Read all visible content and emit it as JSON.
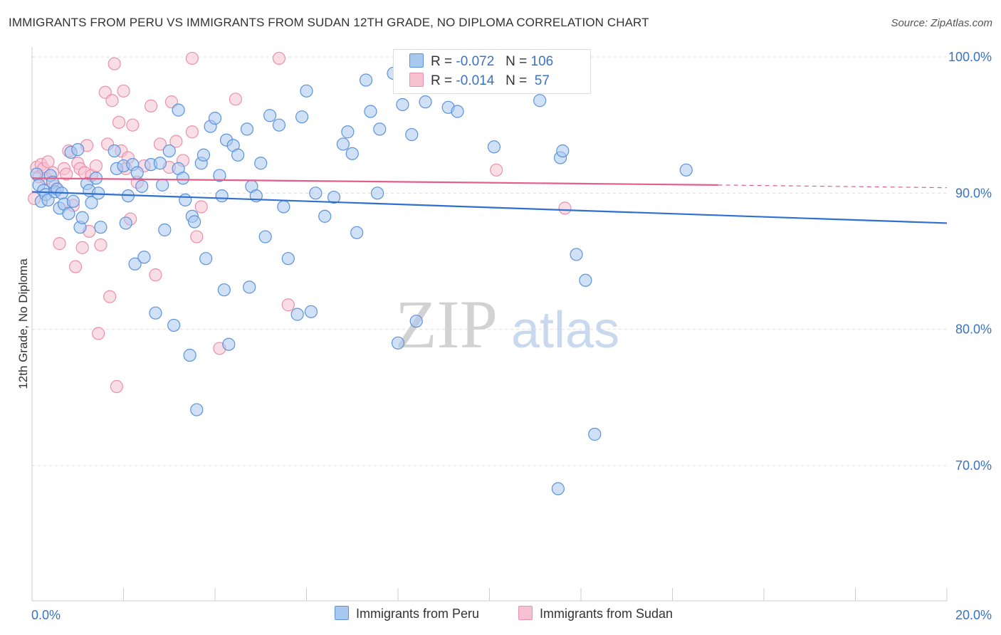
{
  "title": "IMMIGRANTS FROM PERU VS IMMIGRANTS FROM SUDAN 12TH GRADE, NO DIPLOMA CORRELATION CHART",
  "source": "Source: ZipAtlas.com",
  "watermark": {
    "zip": "ZIP",
    "atlas": "atlas"
  },
  "colors": {
    "peru": "#5b93db",
    "peru_fill": "#a9c8f0",
    "peru_line": "#2f6fd0",
    "sudan": "#ec8fac",
    "sudan_fill": "#f6c2d2",
    "sudan_line": "#e35f8a",
    "axis_label": "#3a72c4",
    "grid": "#dddddd"
  },
  "legend": {
    "peru": {
      "r_label": "R =",
      "r_value": "-0.072",
      "n_label": "N =",
      "n_value": "106"
    },
    "sudan": {
      "r_label": "R =",
      "r_value": "-0.014",
      "n_label": "N =",
      "n_value": "57"
    }
  },
  "chart_data": {
    "type": "scatter",
    "title": "IMMIGRANTS FROM PERU VS IMMIGRANTS FROM SUDAN 12TH GRADE, NO DIPLOMA CORRELATION CHART",
    "xlabel": "",
    "ylabel": "12th Grade, No Diploma",
    "xlim": [
      0,
      20
    ],
    "ylim": [
      60,
      101
    ],
    "x_tick_labels": [
      "0.0%",
      "20.0%"
    ],
    "y_ticks": [
      70,
      80,
      90,
      100
    ],
    "y_tick_labels": [
      "70.0%",
      "80.0%",
      "90.0%",
      "100.0%"
    ],
    "series": [
      {
        "name": "Immigrants from Peru",
        "r": -0.072,
        "n": 106,
        "trend": {
          "x0": 0,
          "y0": 90.1,
          "x1": 20,
          "y1": 87.8
        },
        "points": [
          [
            0.1,
            91.4
          ],
          [
            0.15,
            90.6
          ],
          [
            0.2,
            89.4
          ],
          [
            0.25,
            90.2
          ],
          [
            0.3,
            89.9
          ],
          [
            0.35,
            89.5
          ],
          [
            0.4,
            91.3
          ],
          [
            0.45,
            90.8
          ],
          [
            0.5,
            90.1
          ],
          [
            0.55,
            90.3
          ],
          [
            0.6,
            88.9
          ],
          [
            0.65,
            90.0
          ],
          [
            0.7,
            89.2
          ],
          [
            0.8,
            88.5
          ],
          [
            0.85,
            93.0
          ],
          [
            0.9,
            89.4
          ],
          [
            1.0,
            93.2
          ],
          [
            1.05,
            87.5
          ],
          [
            1.1,
            88.2
          ],
          [
            1.2,
            90.7
          ],
          [
            1.25,
            90.2
          ],
          [
            1.3,
            89.3
          ],
          [
            1.4,
            91.1
          ],
          [
            1.45,
            90.0
          ],
          [
            1.5,
            87.5
          ],
          [
            1.8,
            93.1
          ],
          [
            1.85,
            91.8
          ],
          [
            2.0,
            92.0
          ],
          [
            2.1,
            89.8
          ],
          [
            2.05,
            87.8
          ],
          [
            2.2,
            92.1
          ],
          [
            2.3,
            91.5
          ],
          [
            2.25,
            84.8
          ],
          [
            2.4,
            90.5
          ],
          [
            2.45,
            85.3
          ],
          [
            2.6,
            92.1
          ],
          [
            2.7,
            81.2
          ],
          [
            2.8,
            92.2
          ],
          [
            2.85,
            90.6
          ],
          [
            2.9,
            87.3
          ],
          [
            3.0,
            93.1
          ],
          [
            3.1,
            80.3
          ],
          [
            3.2,
            91.8
          ],
          [
            3.3,
            91.1
          ],
          [
            3.35,
            89.5
          ],
          [
            3.45,
            78.1
          ],
          [
            3.5,
            88.3
          ],
          [
            3.55,
            87.9
          ],
          [
            3.6,
            74.1
          ],
          [
            3.7,
            92.2
          ],
          [
            3.75,
            92.8
          ],
          [
            3.8,
            85.2
          ],
          [
            3.9,
            94.9
          ],
          [
            4.0,
            95.5
          ],
          [
            4.1,
            91.3
          ],
          [
            4.15,
            89.8
          ],
          [
            4.2,
            82.9
          ],
          [
            4.25,
            93.9
          ],
          [
            4.3,
            78.9
          ],
          [
            4.4,
            93.5
          ],
          [
            4.5,
            92.8
          ],
          [
            4.7,
            94.7
          ],
          [
            4.75,
            83.1
          ],
          [
            4.8,
            90.5
          ],
          [
            4.9,
            89.8
          ],
          [
            5.1,
            86.8
          ],
          [
            5.2,
            95.7
          ],
          [
            5.4,
            95.0
          ],
          [
            5.5,
            89.0
          ],
          [
            5.6,
            85.2
          ],
          [
            5.8,
            81.1
          ],
          [
            5.9,
            95.6
          ],
          [
            6.1,
            81.3
          ],
          [
            6.2,
            90.0
          ],
          [
            6.4,
            88.3
          ],
          [
            6.6,
            89.7
          ],
          [
            6.8,
            93.6
          ],
          [
            6.9,
            94.5
          ],
          [
            7.0,
            92.9
          ],
          [
            7.1,
            87.1
          ],
          [
            7.3,
            98.3
          ],
          [
            7.4,
            96.0
          ],
          [
            7.55,
            90.0
          ],
          [
            7.6,
            94.7
          ],
          [
            7.9,
            98.8
          ],
          [
            8.0,
            79.0
          ],
          [
            8.1,
            96.5
          ],
          [
            8.2,
            98.5
          ],
          [
            8.3,
            94.3
          ],
          [
            8.4,
            80.6
          ],
          [
            8.6,
            96.7
          ],
          [
            9.1,
            96.3
          ],
          [
            9.4,
            99.9
          ],
          [
            10.1,
            93.4
          ],
          [
            11.1,
            96.8
          ],
          [
            11.5,
            68.3
          ],
          [
            11.55,
            92.6
          ],
          [
            11.6,
            93.1
          ],
          [
            11.9,
            85.5
          ],
          [
            12.1,
            83.6
          ],
          [
            12.3,
            72.3
          ],
          [
            14.3,
            91.7
          ],
          [
            9.3,
            96.0
          ],
          [
            5.0,
            92.2
          ],
          [
            3.2,
            96.1
          ],
          [
            6.0,
            97.5
          ]
        ]
      },
      {
        "name": "Immigrants from Sudan",
        "r": -0.014,
        "n": 57,
        "trend": {
          "x0": 0,
          "y0": 91.1,
          "x1": 15,
          "y1": 90.6,
          "dash_to_x": 20,
          "dash_to_y": 90.4
        },
        "points": [
          [
            0.05,
            89.6
          ],
          [
            0.1,
            91.9
          ],
          [
            0.15,
            91.2
          ],
          [
            0.2,
            92.1
          ],
          [
            0.25,
            91.8
          ],
          [
            0.3,
            91.1
          ],
          [
            0.35,
            92.3
          ],
          [
            0.45,
            91.5
          ],
          [
            0.5,
            90.5
          ],
          [
            0.6,
            86.3
          ],
          [
            0.7,
            91.8
          ],
          [
            0.75,
            91.4
          ],
          [
            0.8,
            93.1
          ],
          [
            0.9,
            89.1
          ],
          [
            0.95,
            84.6
          ],
          [
            1.0,
            92.2
          ],
          [
            1.05,
            91.8
          ],
          [
            1.1,
            86.0
          ],
          [
            1.15,
            91.5
          ],
          [
            1.2,
            93.5
          ],
          [
            1.25,
            87.2
          ],
          [
            1.3,
            91.3
          ],
          [
            1.4,
            92.0
          ],
          [
            1.45,
            79.7
          ],
          [
            1.5,
            86.2
          ],
          [
            1.6,
            97.4
          ],
          [
            1.65,
            93.6
          ],
          [
            1.7,
            82.4
          ],
          [
            1.75,
            96.8
          ],
          [
            1.8,
            99.5
          ],
          [
            1.85,
            75.8
          ],
          [
            1.9,
            95.2
          ],
          [
            1.95,
            93.1
          ],
          [
            2.0,
            97.5
          ],
          [
            2.05,
            91.8
          ],
          [
            2.1,
            92.6
          ],
          [
            2.15,
            88.1
          ],
          [
            2.2,
            95.0
          ],
          [
            2.3,
            90.8
          ],
          [
            2.45,
            92.0
          ],
          [
            2.6,
            96.4
          ],
          [
            2.7,
            84.0
          ],
          [
            2.8,
            93.6
          ],
          [
            3.0,
            91.9
          ],
          [
            3.05,
            96.7
          ],
          [
            3.15,
            93.8
          ],
          [
            3.3,
            92.4
          ],
          [
            3.5,
            94.5
          ],
          [
            3.6,
            86.8
          ],
          [
            3.7,
            89.0
          ],
          [
            4.1,
            78.6
          ],
          [
            4.45,
            96.9
          ],
          [
            5.6,
            81.8
          ],
          [
            10.15,
            91.7
          ],
          [
            11.65,
            88.9
          ],
          [
            3.5,
            99.9
          ],
          [
            5.4,
            99.9
          ]
        ]
      }
    ]
  },
  "bottom_legend": {
    "peru_label": "Immigrants from Peru",
    "sudan_label": "Immigrants from Sudan"
  }
}
